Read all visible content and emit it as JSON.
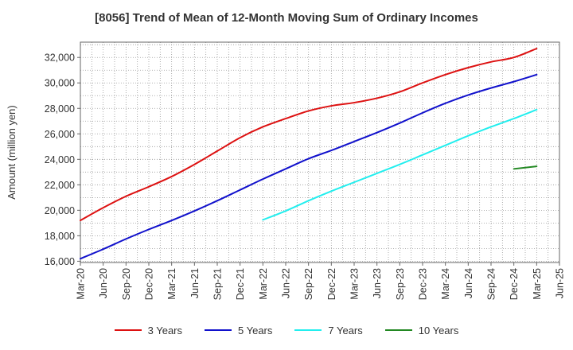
{
  "chart_data": {
    "type": "line",
    "title": "[8056]  Trend of Mean of 12-Month Moving Sum of Ordinary Incomes",
    "xlabel": "",
    "ylabel": "Amount (million yen)",
    "x_ticks": [
      "Mar-20",
      "Jun-20",
      "Sep-20",
      "Dec-20",
      "Mar-21",
      "Jun-21",
      "Sep-21",
      "Dec-21",
      "Mar-22",
      "Jun-22",
      "Sep-22",
      "Dec-22",
      "Mar-23",
      "Jun-23",
      "Sep-23",
      "Dec-23",
      "Mar-24",
      "Jun-24",
      "Sep-24",
      "Dec-24",
      "Mar-25",
      "Jun-25"
    ],
    "y_ticks": [
      "16,000",
      "18,000",
      "20,000",
      "22,000",
      "24,000",
      "26,000",
      "28,000",
      "30,000",
      "32,000"
    ],
    "ylim": [
      15900,
      33200
    ],
    "grid": true,
    "legend_position": "bottom",
    "series": [
      {
        "name": "3 Years",
        "color": "#dd1111",
        "x": [
          "Mar-20",
          "Jun-20",
          "Sep-20",
          "Dec-20",
          "Mar-21",
          "Jun-21",
          "Sep-21",
          "Dec-21",
          "Mar-22",
          "Jun-22",
          "Sep-22",
          "Dec-22",
          "Mar-23",
          "Jun-23",
          "Sep-23",
          "Dec-23",
          "Mar-24",
          "Jun-24",
          "Sep-24",
          "Dec-24",
          "Mar-25"
        ],
        "values": [
          19200,
          20200,
          21100,
          21850,
          22650,
          23600,
          24650,
          25700,
          26550,
          27200,
          27800,
          28200,
          28450,
          28800,
          29300,
          30000,
          30650,
          31200,
          31650,
          32000,
          32700
        ]
      },
      {
        "name": "5 Years",
        "color": "#1111cc",
        "x": [
          "Mar-20",
          "Jun-20",
          "Sep-20",
          "Dec-20",
          "Mar-21",
          "Jun-21",
          "Sep-21",
          "Dec-21",
          "Mar-22",
          "Jun-22",
          "Sep-22",
          "Dec-22",
          "Mar-23",
          "Jun-23",
          "Sep-23",
          "Dec-23",
          "Mar-24",
          "Jun-24",
          "Sep-24",
          "Dec-24",
          "Mar-25"
        ],
        "values": [
          16200,
          16950,
          17750,
          18500,
          19200,
          19950,
          20750,
          21600,
          22450,
          23250,
          24050,
          24700,
          25400,
          26100,
          26850,
          27650,
          28400,
          29050,
          29600,
          30100,
          30650
        ]
      },
      {
        "name": "7 Years",
        "color": "#22eeee",
        "x": [
          "Mar-22",
          "Jun-22",
          "Sep-22",
          "Dec-22",
          "Mar-23",
          "Jun-23",
          "Sep-23",
          "Dec-23",
          "Mar-24",
          "Jun-24",
          "Sep-24",
          "Dec-24",
          "Mar-25"
        ],
        "values": [
          19250,
          19950,
          20750,
          21500,
          22200,
          22900,
          23600,
          24350,
          25100,
          25850,
          26550,
          27200,
          27900
        ]
      },
      {
        "name": "10 Years",
        "color": "#228822",
        "x": [
          "Dec-24",
          "Mar-25"
        ],
        "values": [
          23250,
          23450
        ]
      }
    ]
  }
}
